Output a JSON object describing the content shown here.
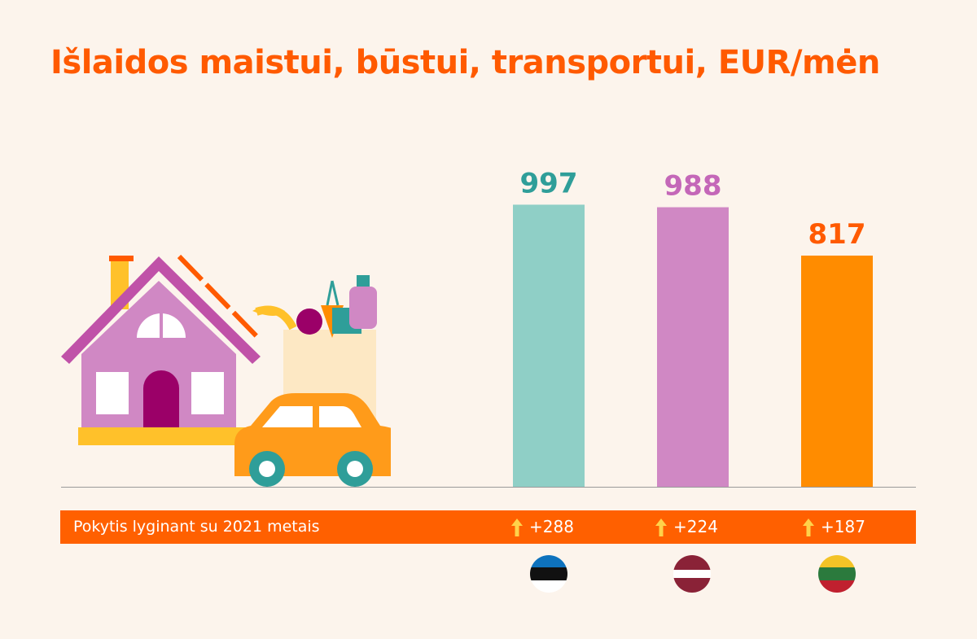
{
  "title": "Išlaidos maistui, būstui, transportui, EUR/mėn",
  "chart_data": {
    "type": "bar",
    "title": "Išlaidos maistui, būstui, transportui, EUR/mėn",
    "xlabel": "",
    "ylabel": "",
    "categories": [
      "Estija",
      "Latvija",
      "Lietuva"
    ],
    "values": [
      997,
      988,
      817
    ],
    "value_labels": [
      "997",
      "988",
      "817"
    ],
    "bar_colors": [
      "#8fcfc6",
      "#d088c4",
      "#ff8c00"
    ],
    "label_colors": [
      "#2f9e99",
      "#c467b8",
      "#ff5a00"
    ],
    "changes": [
      "+288",
      "+224",
      "+187"
    ],
    "grid": false,
    "legend": "none"
  },
  "change_row": {
    "label": "Pokytis lyginant su 2021 metais",
    "items": [
      "+288",
      "+224",
      "+187"
    ],
    "arrow_color": "#ffd24a"
  },
  "flags": [
    {
      "name": "Estija",
      "colors": [
        "#0e72bd",
        "#111111",
        "#ffffff"
      ]
    },
    {
      "name": "Latvija",
      "colors": [
        "#8a2237",
        "#ffffff",
        "#8a2237"
      ]
    },
    {
      "name": "Lietuva",
      "colors": [
        "#f4c327",
        "#2b7a3d",
        "#c0202f"
      ]
    }
  ],
  "colors": {
    "background": "#fcf4ec",
    "accent": "#ff5a00",
    "axis": "#9a9a9a"
  }
}
